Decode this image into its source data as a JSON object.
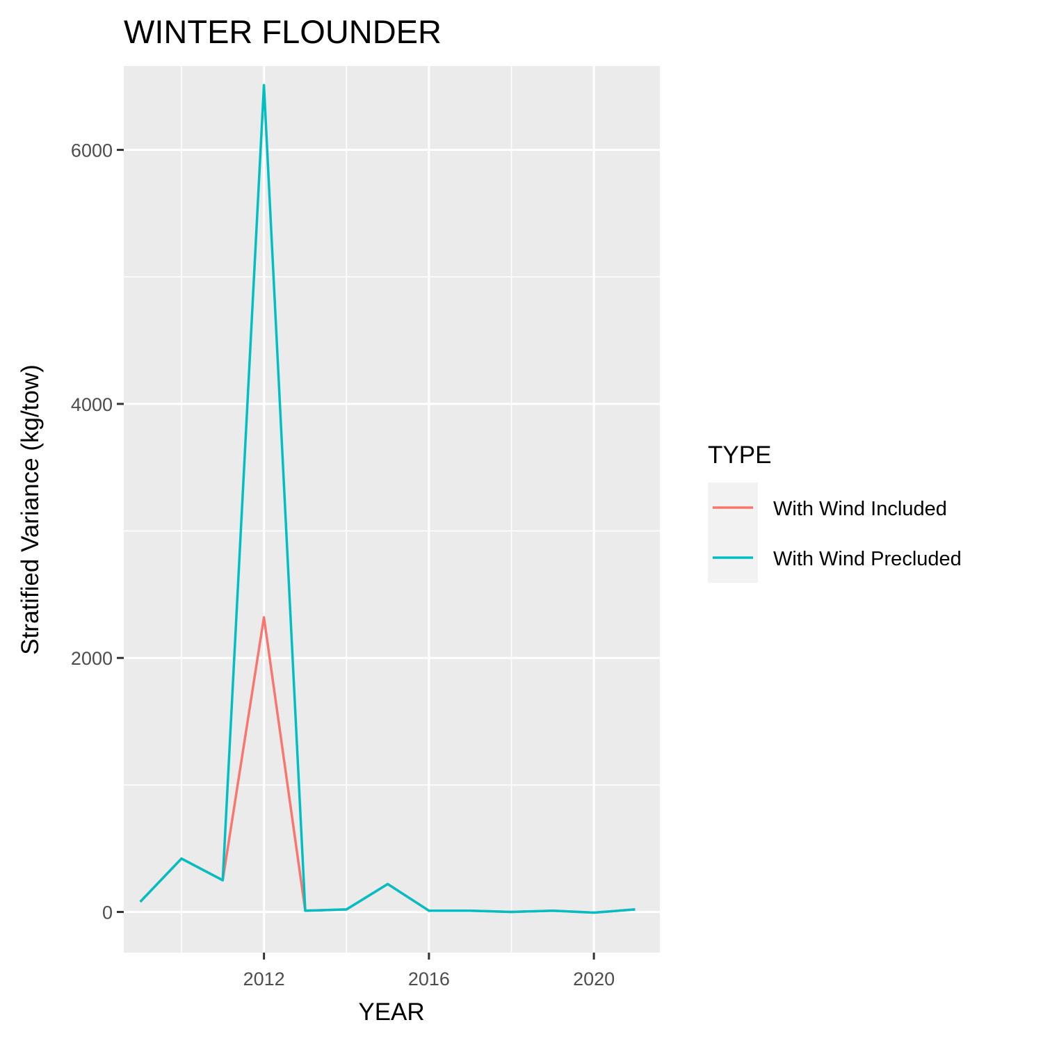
{
  "chart_data": {
    "type": "line",
    "title": "WINTER FLOUNDER",
    "xlabel": "YEAR",
    "ylabel": "Stratified Variance (kg/tow)",
    "xlim": [
      2008.6,
      2021.6
    ],
    "ylim": [
      -320,
      6660
    ],
    "x_ticks": [
      2012,
      2016,
      2020
    ],
    "x_tick_labels": [
      "2012",
      "2016",
      "2020"
    ],
    "x_minor_ticks": [
      2010,
      2014,
      2018
    ],
    "y_ticks": [
      0,
      2000,
      4000,
      6000
    ],
    "y_tick_labels": [
      "0",
      "2000",
      "4000",
      "6000"
    ],
    "y_minor_ticks": [
      1000,
      3000,
      5000
    ],
    "grid": true,
    "legend": {
      "title": "TYPE",
      "position": "right"
    },
    "x": [
      2009,
      2010,
      2011,
      2012,
      2013,
      2014,
      2015,
      2016,
      2017,
      2018,
      2019,
      2020,
      2021
    ],
    "series": [
      {
        "name": "With Wind Included",
        "color": "#F8766D",
        "values": [
          80,
          420,
          250,
          2320,
          10,
          20,
          220,
          10,
          10,
          0,
          10,
          -5,
          20
        ]
      },
      {
        "name": "With Wind Precluded",
        "color": "#00BFC4",
        "values": [
          80,
          420,
          250,
          6510,
          10,
          20,
          220,
          10,
          10,
          0,
          10,
          -5,
          20
        ]
      }
    ]
  }
}
